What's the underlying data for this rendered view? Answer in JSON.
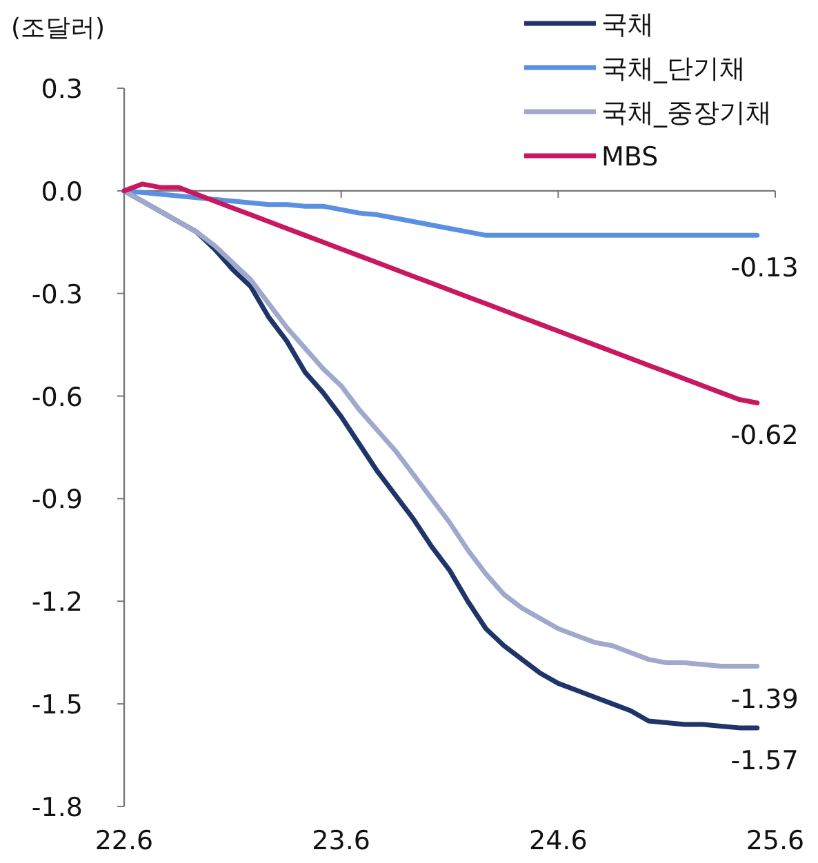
{
  "chart_data": {
    "type": "line",
    "ylabel": "(조달러)",
    "categories": [
      "22.6",
      null,
      null,
      null,
      null,
      null,
      null,
      null,
      null,
      null,
      null,
      null,
      "23.6",
      null,
      null,
      null,
      null,
      null,
      null,
      null,
      null,
      null,
      null,
      null,
      "24.6",
      null,
      null,
      null,
      null,
      null,
      null,
      null,
      null,
      null,
      null,
      null,
      "25.6"
    ],
    "series": [
      {
        "name": "국채",
        "color": "#1f3468",
        "values": [
          0,
          -0.03,
          -0.06,
          -0.09,
          -0.12,
          -0.17,
          -0.23,
          -0.28,
          -0.37,
          -0.44,
          -0.53,
          -0.59,
          -0.66,
          -0.74,
          -0.82,
          -0.89,
          -0.96,
          -1.04,
          -1.11,
          -1.2,
          -1.28,
          -1.33,
          -1.37,
          -1.41,
          -1.44,
          -1.46,
          -1.48,
          -1.5,
          -1.52,
          -1.55,
          -1.555,
          -1.56,
          -1.56,
          -1.565,
          -1.57,
          -1.57,
          null
        ],
        "value_labels": [
          null,
          null,
          null,
          null,
          null,
          null,
          null,
          null,
          null,
          null,
          null,
          null,
          null,
          null,
          null,
          null,
          null,
          null,
          null,
          null,
          null,
          null,
          null,
          null,
          null,
          null,
          null,
          null,
          null,
          null,
          null,
          null,
          null,
          null,
          null,
          "-1.57",
          null
        ]
      },
      {
        "name": "국채_단기채",
        "color": "#5b8fe0",
        "values": [
          0,
          -0.005,
          -0.01,
          -0.015,
          -0.02,
          -0.025,
          -0.03,
          -0.035,
          -0.04,
          -0.04,
          -0.045,
          -0.045,
          -0.055,
          -0.065,
          -0.07,
          -0.08,
          -0.09,
          -0.1,
          -0.11,
          -0.12,
          -0.13,
          -0.13,
          -0.13,
          -0.13,
          -0.13,
          -0.13,
          -0.13,
          -0.13,
          -0.13,
          -0.13,
          -0.13,
          -0.13,
          -0.13,
          -0.13,
          -0.13,
          -0.13,
          null
        ],
        "value_labels": [
          null,
          null,
          null,
          null,
          null,
          null,
          null,
          null,
          null,
          null,
          null,
          null,
          null,
          null,
          null,
          null,
          null,
          null,
          null,
          null,
          null,
          null,
          null,
          null,
          null,
          null,
          null,
          null,
          null,
          null,
          null,
          null,
          null,
          null,
          null,
          "-0.13",
          null
        ]
      },
      {
        "name": "국채_중장기채",
        "color": "#a0a8cc",
        "values": [
          0,
          -0.03,
          -0.06,
          -0.09,
          -0.12,
          -0.16,
          -0.21,
          -0.26,
          -0.33,
          -0.4,
          -0.46,
          -0.52,
          -0.57,
          -0.64,
          -0.7,
          -0.76,
          -0.83,
          -0.9,
          -0.97,
          -1.05,
          -1.12,
          -1.18,
          -1.22,
          -1.25,
          -1.28,
          -1.3,
          -1.32,
          -1.33,
          -1.35,
          -1.37,
          -1.38,
          -1.38,
          -1.385,
          -1.39,
          -1.39,
          -1.39,
          null
        ],
        "value_labels": [
          null,
          null,
          null,
          null,
          null,
          null,
          null,
          null,
          null,
          null,
          null,
          null,
          null,
          null,
          null,
          null,
          null,
          null,
          null,
          null,
          null,
          null,
          null,
          null,
          null,
          null,
          null,
          null,
          null,
          null,
          null,
          null,
          null,
          null,
          null,
          "-1.39",
          null
        ]
      },
      {
        "name": "MBS",
        "color": "#c8185f",
        "values": [
          0,
          0.02,
          0.01,
          0.01,
          -0.01,
          -0.03,
          -0.05,
          -0.07,
          -0.09,
          -0.11,
          -0.13,
          -0.15,
          -0.17,
          -0.19,
          -0.21,
          -0.23,
          -0.25,
          -0.27,
          -0.29,
          -0.31,
          -0.33,
          -0.35,
          -0.37,
          -0.39,
          -0.41,
          -0.43,
          -0.45,
          -0.47,
          -0.49,
          -0.51,
          -0.53,
          -0.55,
          -0.57,
          -0.59,
          -0.61,
          -0.62,
          null
        ],
        "value_labels": [
          null,
          null,
          null,
          null,
          null,
          null,
          null,
          null,
          null,
          null,
          null,
          null,
          null,
          null,
          null,
          null,
          null,
          null,
          null,
          null,
          null,
          null,
          null,
          null,
          null,
          null,
          null,
          null,
          null,
          null,
          null,
          null,
          null,
          null,
          null,
          "-0.62",
          null
        ]
      }
    ],
    "ylim": [
      -1.8,
      0.3
    ],
    "yticks": [
      {
        "value": 0.3,
        "label": "0.3"
      },
      {
        "value": 0,
        "label": "0.0"
      },
      {
        "value": -0.3,
        "label": "-0.3"
      },
      {
        "value": -0.6,
        "label": "-0.6"
      },
      {
        "value": -0.9,
        "label": "-0.9"
      },
      {
        "value": -1.2,
        "label": "-1.2"
      },
      {
        "value": -1.5,
        "label": "-1.5"
      },
      {
        "value": -1.8,
        "label": "-1.8"
      }
    ],
    "legend": "top right",
    "marker": "none",
    "line_style": "solid"
  }
}
